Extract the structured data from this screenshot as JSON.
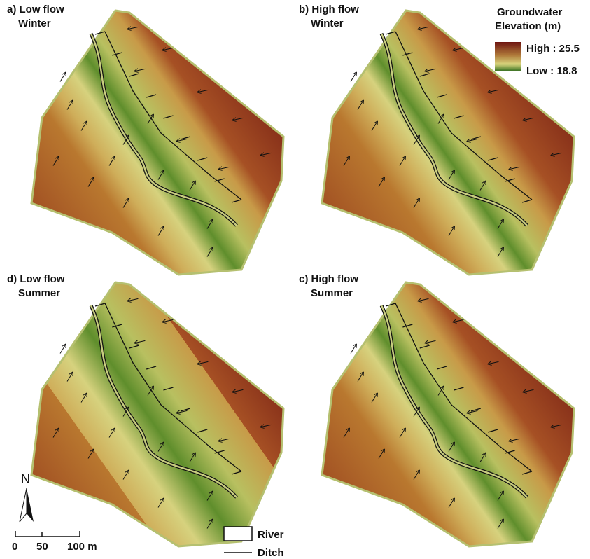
{
  "panels": [
    {
      "label": "a) Low flow",
      "season": "Winter"
    },
    {
      "label": "b) High flow",
      "season": "Winter"
    },
    {
      "label": "d) Low flow",
      "season": "Summer"
    },
    {
      "label": "c) High flow",
      "season": "Summer"
    }
  ],
  "legend": {
    "title_line1": "Groundwater",
    "title_line2": "Elevation (m)",
    "high": "High : 25.5",
    "low": "Low : 18.8"
  },
  "north": "N",
  "scale_bar": [
    "0",
    "50",
    "100 m"
  ],
  "key": {
    "river": "River",
    "ditch": "Ditch"
  }
}
